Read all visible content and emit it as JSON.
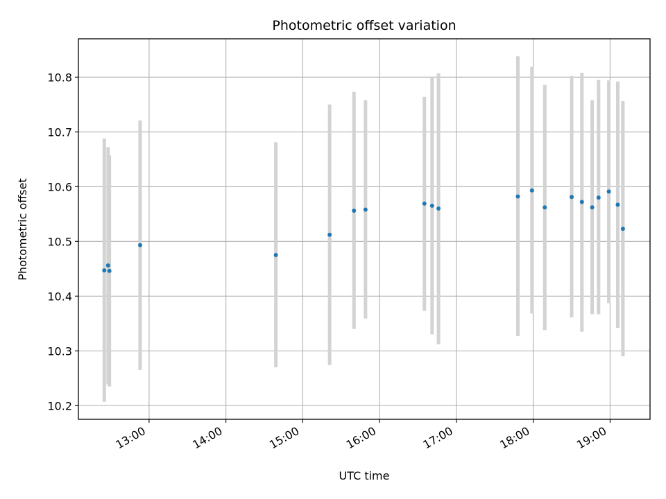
{
  "chart_data": {
    "type": "scatter",
    "title": "Photometric offset variation",
    "xlabel": "UTC time",
    "ylabel": "Photometric offset",
    "x_tick_labels": [
      "13:00",
      "14:00",
      "15:00",
      "16:00",
      "17:00",
      "18:00",
      "19:00"
    ],
    "x_ticks_hours": [
      13,
      14,
      15,
      16,
      17,
      18,
      19
    ],
    "y_ticks": [
      10.2,
      10.3,
      10.4,
      10.5,
      10.6,
      10.7,
      10.8
    ],
    "y_tick_labels": [
      "10.2",
      "10.3",
      "10.4",
      "10.5",
      "10.6",
      "10.7",
      "10.8"
    ],
    "xlim_hours": [
      12.08,
      19.52
    ],
    "ylim": [
      10.175,
      10.87
    ],
    "grid": true,
    "point_color": "#1f77b4",
    "errorbar_color": "#d3d3d3",
    "series": [
      {
        "points": [
          {
            "t": "12:25",
            "y": 10.447,
            "lo": 10.207,
            "hi": 10.688
          },
          {
            "t": "12:28",
            "y": 10.456,
            "lo": 10.239,
            "hi": 10.672
          },
          {
            "t": "12:29",
            "y": 10.446,
            "lo": 10.235,
            "hi": 10.657
          },
          {
            "t": "12:53",
            "y": 10.493,
            "lo": 10.265,
            "hi": 10.721
          },
          {
            "t": "14:39",
            "y": 10.475,
            "lo": 10.27,
            "hi": 10.681
          },
          {
            "t": "15:21",
            "y": 10.512,
            "lo": 10.274,
            "hi": 10.75
          },
          {
            "t": "15:40",
            "y": 10.556,
            "lo": 10.34,
            "hi": 10.773
          },
          {
            "t": "15:49",
            "y": 10.558,
            "lo": 10.359,
            "hi": 10.758
          },
          {
            "t": "16:35",
            "y": 10.569,
            "lo": 10.373,
            "hi": 10.764
          },
          {
            "t": "16:41",
            "y": 10.565,
            "lo": 10.33,
            "hi": 10.8
          },
          {
            "t": "16:46",
            "y": 10.56,
            "lo": 10.312,
            "hi": 10.807
          },
          {
            "t": "17:48",
            "y": 10.582,
            "lo": 10.327,
            "hi": 10.838
          },
          {
            "t": "17:59",
            "y": 10.593,
            "lo": 10.368,
            "hi": 10.819
          },
          {
            "t": "18:09",
            "y": 10.562,
            "lo": 10.338,
            "hi": 10.786
          },
          {
            "t": "18:30",
            "y": 10.581,
            "lo": 10.361,
            "hi": 10.802
          },
          {
            "t": "18:38",
            "y": 10.572,
            "lo": 10.335,
            "hi": 10.808
          },
          {
            "t": "18:46",
            "y": 10.562,
            "lo": 10.367,
            "hi": 10.758
          },
          {
            "t": "18:51",
            "y": 10.58,
            "lo": 10.367,
            "hi": 10.795
          },
          {
            "t": "18:59",
            "y": 10.591,
            "lo": 10.387,
            "hi": 10.794
          },
          {
            "t": "19:06",
            "y": 10.567,
            "lo": 10.342,
            "hi": 10.792
          },
          {
            "t": "19:10",
            "y": 10.523,
            "lo": 10.29,
            "hi": 10.756
          }
        ]
      }
    ]
  }
}
